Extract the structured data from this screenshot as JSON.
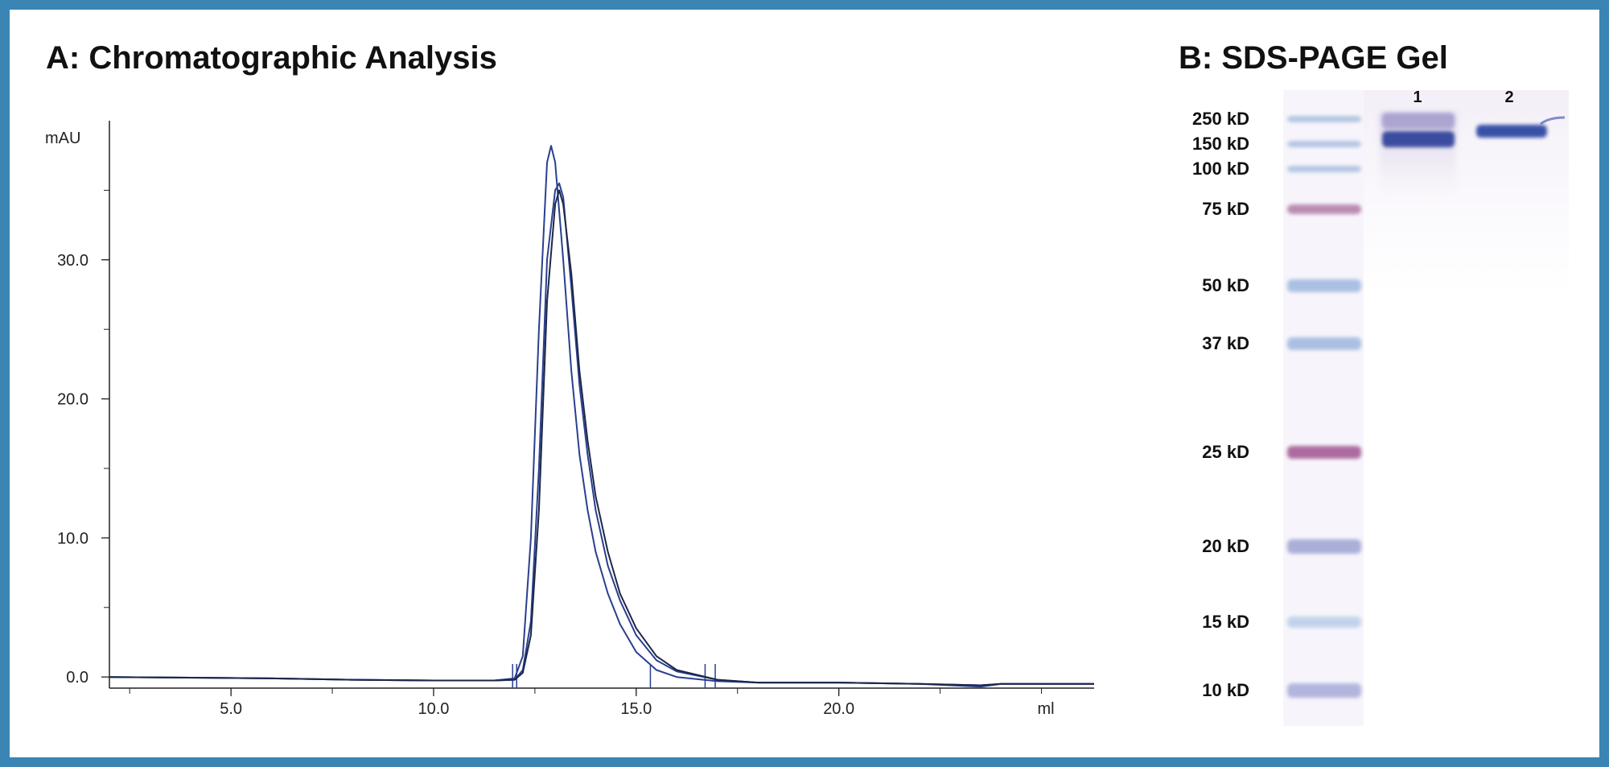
{
  "colors": {
    "border": "#3a85b4",
    "trace": "#2a3f8f",
    "trace_dark": "#1c2747",
    "axis": "#222222"
  },
  "panel_a": {
    "title": "A: Chromatographic Analysis"
  },
  "panel_b": {
    "title": "B: SDS-PAGE Gel",
    "lane_labels": [
      "1",
      "2"
    ],
    "markers": [
      "250 kD",
      "150 kD",
      "100 kD",
      "75 kD",
      "50 kD",
      "37 kD",
      "25 kD",
      "20 kD",
      "15 kD",
      "10 kD"
    ]
  },
  "chart_data": [
    {
      "type": "line",
      "title": "A: Chromatographic Analysis",
      "xlabel": "ml",
      "ylabel": "mAU",
      "xlim": [
        2.0,
        26.3
      ],
      "ylim": [
        -0.8,
        40.0
      ],
      "x_ticks": [
        5.0,
        10.0,
        15.0,
        20.0
      ],
      "x_tick_labels": [
        "5.0",
        "10.0",
        "15.0",
        "20.0"
      ],
      "y_ticks": [
        0.0,
        10.0,
        20.0,
        30.0
      ],
      "y_tick_labels": [
        "0.0",
        "10.0",
        "20.0",
        "30.0"
      ],
      "grid": false,
      "fraction_marks_ml": [
        11.95,
        12.05,
        15.35,
        16.7,
        16.95
      ],
      "series": [
        {
          "x": [
            2.0,
            4.0,
            6.0,
            8.0,
            10.0,
            11.5,
            12.0,
            12.2,
            12.4,
            12.6,
            12.8,
            12.9,
            13.0,
            13.2,
            13.4,
            13.6,
            13.8,
            14.0,
            14.3,
            14.6,
            15.0,
            15.5,
            16.0,
            17.0,
            18.0,
            20.0,
            22.0,
            23.5,
            24.0,
            25.0,
            26.3
          ],
          "y": [
            0.0,
            -0.05,
            -0.1,
            -0.2,
            -0.25,
            -0.25,
            -0.1,
            1.5,
            10.0,
            25.0,
            37.0,
            38.2,
            37.0,
            30.0,
            22.0,
            16.0,
            12.0,
            9.0,
            6.0,
            3.8,
            1.8,
            0.5,
            0.0,
            -0.3,
            -0.4,
            -0.4,
            -0.5,
            -0.7,
            -0.5,
            -0.5,
            -0.5
          ]
        },
        {
          "x": [
            2.0,
            4.0,
            6.0,
            8.0,
            10.0,
            11.5,
            12.0,
            12.2,
            12.4,
            12.6,
            12.8,
            13.0,
            13.1,
            13.2,
            13.4,
            13.6,
            13.8,
            14.0,
            14.3,
            14.6,
            15.0,
            15.5,
            16.0,
            17.0,
            18.0,
            20.0,
            22.0,
            23.5,
            24.0,
            25.0,
            26.3
          ],
          "y": [
            0.0,
            -0.05,
            -0.1,
            -0.2,
            -0.25,
            -0.25,
            -0.2,
            0.5,
            4.0,
            15.0,
            30.0,
            35.0,
            35.5,
            34.5,
            28.0,
            21.0,
            16.0,
            12.0,
            8.0,
            5.5,
            3.0,
            1.2,
            0.4,
            -0.2,
            -0.4,
            -0.4,
            -0.5,
            -0.6,
            -0.5,
            -0.5,
            -0.5
          ]
        },
        {
          "x": [
            2.0,
            4.0,
            6.0,
            8.0,
            10.0,
            11.5,
            12.0,
            12.2,
            12.4,
            12.6,
            12.8,
            13.0,
            13.1,
            13.2,
            13.4,
            13.6,
            13.8,
            14.0,
            14.3,
            14.6,
            15.0,
            15.5,
            16.0,
            17.0,
            18.0,
            20.0,
            22.0,
            23.5,
            24.0,
            25.0,
            26.3
          ],
          "y": [
            0.0,
            -0.05,
            -0.1,
            -0.2,
            -0.25,
            -0.25,
            -0.2,
            0.3,
            3.0,
            12.0,
            27.0,
            34.0,
            35.0,
            34.0,
            29.0,
            22.0,
            17.0,
            13.0,
            9.0,
            6.0,
            3.5,
            1.5,
            0.5,
            -0.2,
            -0.4,
            -0.4,
            -0.5,
            -0.6,
            -0.5,
            -0.5,
            -0.5
          ]
        }
      ]
    }
  ]
}
